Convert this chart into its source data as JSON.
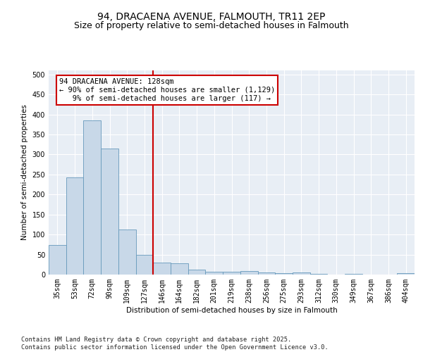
{
  "title_line1": "94, DRACAENA AVENUE, FALMOUTH, TR11 2EP",
  "title_line2": "Size of property relative to semi-detached houses in Falmouth",
  "xlabel": "Distribution of semi-detached houses by size in Falmouth",
  "ylabel": "Number of semi-detached properties",
  "categories": [
    "35sqm",
    "53sqm",
    "72sqm",
    "90sqm",
    "109sqm",
    "127sqm",
    "146sqm",
    "164sqm",
    "182sqm",
    "201sqm",
    "219sqm",
    "238sqm",
    "256sqm",
    "275sqm",
    "293sqm",
    "312sqm",
    "330sqm",
    "349sqm",
    "367sqm",
    "386sqm",
    "404sqm"
  ],
  "values": [
    73,
    242,
    386,
    315,
    113,
    50,
    30,
    29,
    13,
    7,
    7,
    8,
    6,
    3,
    5,
    1,
    0,
    1,
    0,
    0,
    3
  ],
  "bar_color": "#c8d8e8",
  "bar_edge_color": "#6699bb",
  "vline_x_index": 5,
  "vline_color": "#cc0000",
  "annotation_line1": "94 DRACAENA AVENUE: 128sqm",
  "annotation_line2": "← 90% of semi-detached houses are smaller (1,129)",
  "annotation_line3": "   9% of semi-detached houses are larger (117) →",
  "annotation_box_color": "#ffffff",
  "annotation_box_edge": "#cc0000",
  "ylim": [
    0,
    510
  ],
  "yticks": [
    0,
    50,
    100,
    150,
    200,
    250,
    300,
    350,
    400,
    450,
    500
  ],
  "background_color": "#e8eef5",
  "footer_text": "Contains HM Land Registry data © Crown copyright and database right 2025.\nContains public sector information licensed under the Open Government Licence v3.0.",
  "title_fontsize": 10,
  "subtitle_fontsize": 9,
  "label_fontsize": 7.5,
  "tick_fontsize": 7,
  "annotation_fontsize": 7.5
}
